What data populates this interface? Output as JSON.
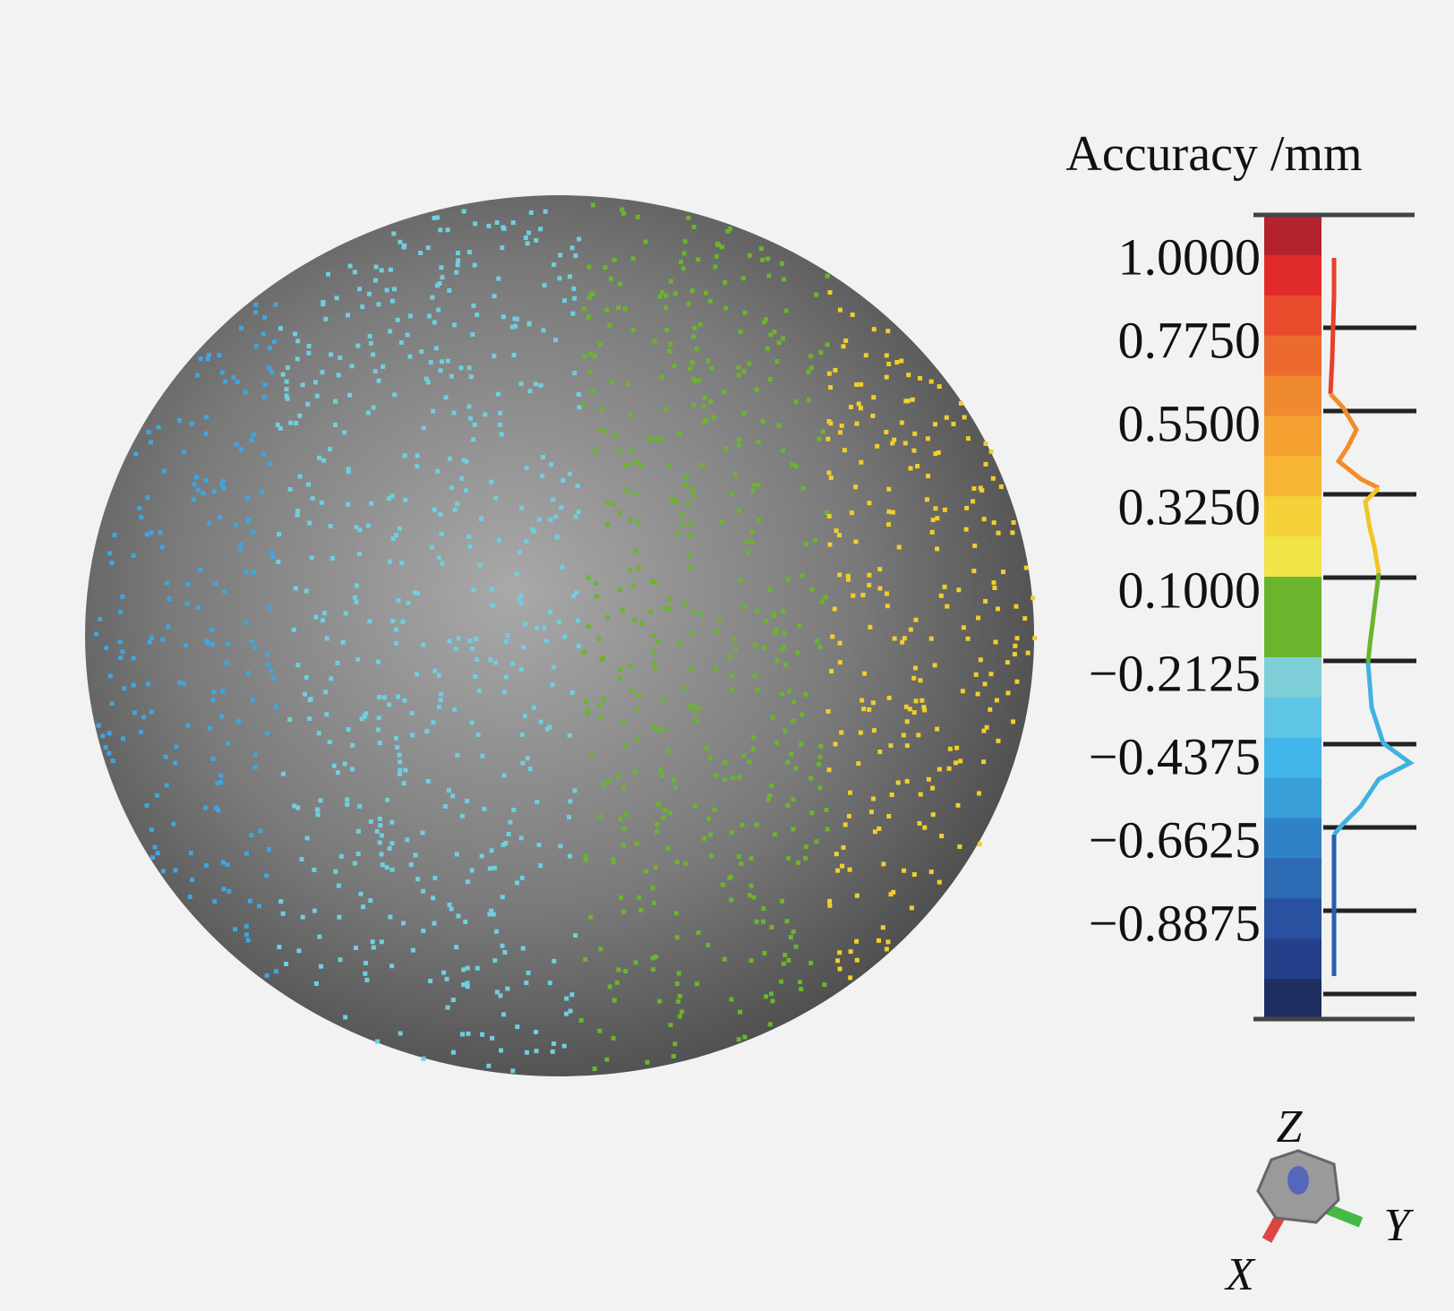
{
  "colorbar": {
    "title": "Accuracy /mm",
    "tick_labels": [
      "1.0000",
      "0.7750",
      "0.5500",
      "0.3250",
      "0.1000",
      "−0.2125",
      "−0.4375",
      "−0.6625",
      "−0.8875"
    ]
  },
  "axes": {
    "z": "Z",
    "y": "Y",
    "x": "X"
  }
}
